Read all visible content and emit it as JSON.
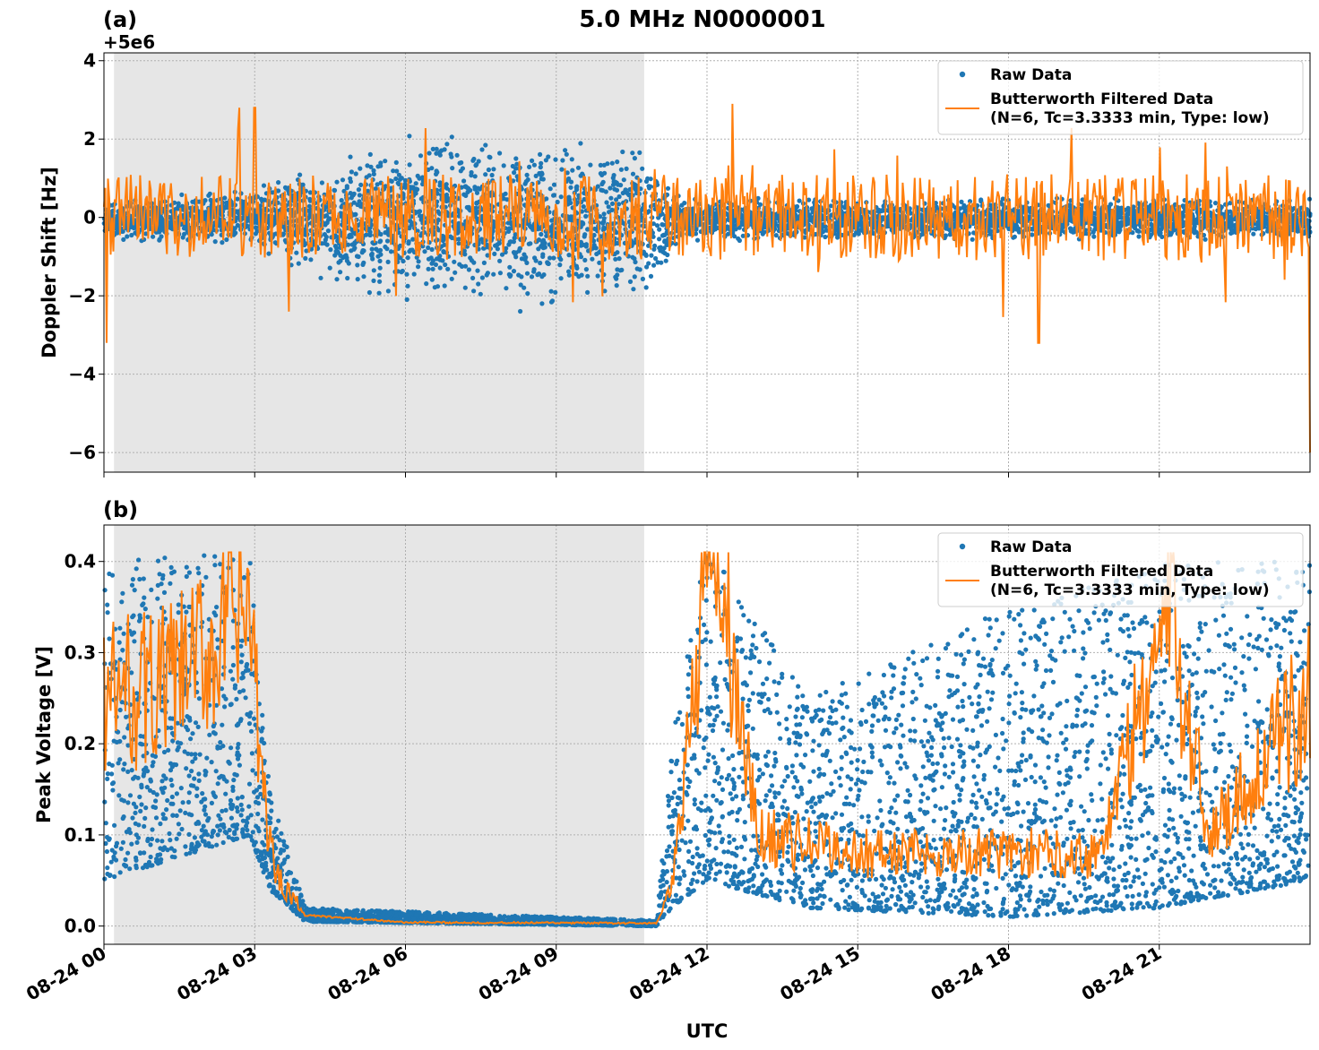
{
  "figure": {
    "title": "5.0 MHz N0000001",
    "xlabel": "UTC",
    "x_ticks": [
      "08-24 00",
      "08-24 03",
      "08-24 06",
      "08-24 09",
      "08-24 12",
      "08-24 15",
      "08-24 18",
      "08-24 21"
    ]
  },
  "colors": {
    "raw": "#1f77b4",
    "filtered": "#ff7f0e",
    "shade": "#e6e6e6",
    "grid": "#b0b0b0"
  },
  "chart_data": [
    {
      "type": "scatter",
      "panel_label": "(a)",
      "offset_label": "+5e6",
      "ylabel": "Doppler Shift [Hz]",
      "xlim_hours": [
        0,
        24
      ],
      "ylim": [
        -6.5,
        4.2
      ],
      "y_ticks": [
        4,
        2,
        0,
        -2,
        -4,
        -6
      ],
      "y_tick_labels": [
        "4",
        "2",
        "0",
        "−2",
        "−4",
        "−6"
      ],
      "grid": true,
      "legend_placement": "top-right",
      "shaded_interval_hours": [
        0.2,
        10.75
      ],
      "series": [
        {
          "name": "Raw Data",
          "kind": "scatter",
          "envelope": [
            {
              "x_hours": 0,
              "low": -0.6,
              "high": 0.4
            },
            {
              "x_hours": 3,
              "low": -0.8,
              "high": 0.8
            },
            {
              "x_hours": 5,
              "low": -2.0,
              "high": 1.8
            },
            {
              "x_hours": 7,
              "low": -2.5,
              "high": 2.4
            },
            {
              "x_hours": 9,
              "low": -2.3,
              "high": 2.0
            },
            {
              "x_hours": 10.75,
              "low": -2.0,
              "high": 1.8
            },
            {
              "x_hours": 11.5,
              "low": -0.6,
              "high": 0.5
            },
            {
              "x_hours": 24,
              "low": -0.6,
              "high": 0.5
            }
          ]
        },
        {
          "name": "Butterworth Filtered Data\n(N=6, Tc=3.3333 min, Type: low)",
          "name_lines": [
            "Butterworth Filtered Data",
            "(N=6, Tc=3.3333 min, Type: low)"
          ],
          "kind": "line",
          "typical_range": [
            -1.5,
            1.5
          ],
          "extremes": [
            {
              "x_hours": 0.05,
              "y": -3.2
            },
            {
              "x_hours": 2.7,
              "y": 2.8
            },
            {
              "x_hours": 3.0,
              "y": 2.8
            },
            {
              "x_hours": 12.5,
              "y": 2.9
            },
            {
              "x_hours": 18.6,
              "y": -3.2
            },
            {
              "x_hours": 23.99,
              "y": -6.0
            }
          ]
        }
      ]
    },
    {
      "type": "scatter",
      "panel_label": "(b)",
      "ylabel": "Peak Voltage [V]",
      "xlim_hours": [
        0,
        24
      ],
      "ylim": [
        -0.02,
        0.44
      ],
      "y_ticks": [
        0.4,
        0.3,
        0.2,
        0.1,
        0.0
      ],
      "y_tick_labels": [
        "0.4",
        "0.3",
        "0.2",
        "0.1",
        "0.0"
      ],
      "grid": true,
      "legend_placement": "top-right",
      "shaded_interval_hours": [
        0.2,
        10.75
      ],
      "series": [
        {
          "name": "Raw Data",
          "kind": "scatter",
          "envelope": [
            {
              "x_hours": 0,
              "low": 0.05,
              "high": 0.4
            },
            {
              "x_hours": 2.9,
              "low": 0.1,
              "high": 0.41
            },
            {
              "x_hours": 3.3,
              "low": 0.04,
              "high": 0.15
            },
            {
              "x_hours": 4.0,
              "low": 0.005,
              "high": 0.02
            },
            {
              "x_hours": 11.0,
              "low": 0.0,
              "high": 0.006
            },
            {
              "x_hours": 11.3,
              "low": 0.02,
              "high": 0.2
            },
            {
              "x_hours": 12.0,
              "low": 0.05,
              "high": 0.42
            },
            {
              "x_hours": 14.0,
              "low": 0.02,
              "high": 0.25
            },
            {
              "x_hours": 18.0,
              "low": 0.01,
              "high": 0.35
            },
            {
              "x_hours": 21.0,
              "low": 0.02,
              "high": 0.4
            },
            {
              "x_hours": 24.0,
              "low": 0.05,
              "high": 0.4
            }
          ]
        },
        {
          "name": "Butterworth Filtered Data\n(N=6, Tc=3.3333 min, Type: low)",
          "name_lines": [
            "Butterworth Filtered Data",
            "(N=6, Tc=3.3333 min, Type: low)"
          ],
          "kind": "line",
          "key_points": [
            {
              "x_hours": 0,
              "y": 0.25
            },
            {
              "x_hours": 1.5,
              "y": 0.27
            },
            {
              "x_hours": 2.9,
              "y": 0.35
            },
            {
              "x_hours": 3.1,
              "y": 0.18
            },
            {
              "x_hours": 3.4,
              "y": 0.06
            },
            {
              "x_hours": 4.0,
              "y": 0.012
            },
            {
              "x_hours": 6.0,
              "y": 0.004
            },
            {
              "x_hours": 11.0,
              "y": 0.003
            },
            {
              "x_hours": 11.3,
              "y": 0.04
            },
            {
              "x_hours": 11.8,
              "y": 0.3
            },
            {
              "x_hours": 12.0,
              "y": 0.4
            },
            {
              "x_hours": 12.3,
              "y": 0.36
            },
            {
              "x_hours": 13.0,
              "y": 0.1
            },
            {
              "x_hours": 15.0,
              "y": 0.08
            },
            {
              "x_hours": 17.5,
              "y": 0.08
            },
            {
              "x_hours": 19.8,
              "y": 0.08
            },
            {
              "x_hours": 21.2,
              "y": 0.35
            },
            {
              "x_hours": 22.0,
              "y": 0.1
            },
            {
              "x_hours": 24.0,
              "y": 0.25
            }
          ]
        }
      ]
    }
  ]
}
